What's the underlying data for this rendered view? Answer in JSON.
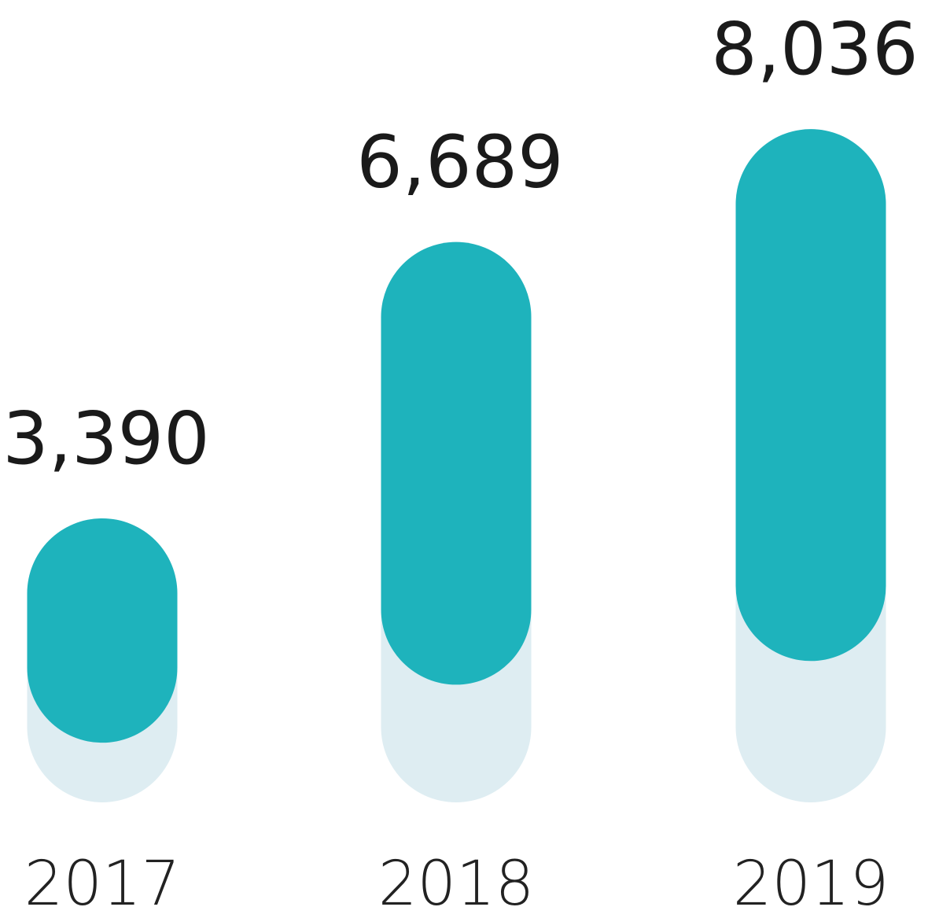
{
  "chart_data": {
    "type": "bar",
    "categories": [
      "2017",
      "2018",
      "2019"
    ],
    "values": [
      3390,
      6689,
      8036
    ],
    "value_labels": [
      "3,390",
      "6,689",
      "8,036"
    ],
    "color": "#1eb3bc",
    "shadow_color": "#deedf2"
  }
}
